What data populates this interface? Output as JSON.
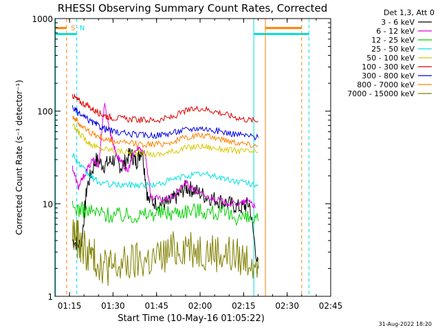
{
  "chart_data": {
    "type": "line",
    "title": "RHESSI Observing Summary Count Rates, Corrected",
    "xlabel": "Start Time (10-May-16 01:05:22)",
    "ylabel": "Corrected Count Rate (s⁻¹ detector⁻¹)",
    "y_scale": "log",
    "ylim": [
      1,
      1000
    ],
    "xlim_minutes": [
      5,
      100
    ],
    "x_ticks": [
      {
        "label": "01:15",
        "minutes": 10
      },
      {
        "label": "01:30",
        "minutes": 25
      },
      {
        "label": "01:45",
        "minutes": 40
      },
      {
        "label": "02:00",
        "minutes": 55
      },
      {
        "label": "02:15",
        "minutes": 70
      },
      {
        "label": "02:30",
        "minutes": 85
      },
      {
        "label": "02:45",
        "minutes": 100
      }
    ],
    "y_ticks": [
      {
        "label": "1",
        "value": 1
      },
      {
        "label": "10",
        "value": 10
      },
      {
        "label": "100",
        "value": 100
      },
      {
        "label": "1000",
        "value": 1000
      }
    ],
    "legend_title": "Det 1,3, Att 0",
    "legend_position": "top-right outside",
    "series": [
      {
        "name": "3 - 6 keV",
        "color": "#000000",
        "points": [
          [
            11,
            4
          ],
          [
            14,
            3.5
          ],
          [
            16,
            15
          ],
          [
            19,
            30
          ],
          [
            22,
            26
          ],
          [
            25,
            30
          ],
          [
            28,
            25
          ],
          [
            31,
            35
          ],
          [
            33,
            28
          ],
          [
            35,
            40
          ],
          [
            37,
            11
          ],
          [
            41,
            10
          ],
          [
            44,
            10
          ],
          [
            47,
            12
          ],
          [
            50,
            15
          ],
          [
            53,
            14
          ],
          [
            57,
            12
          ],
          [
            61,
            11
          ],
          [
            65,
            10
          ],
          [
            69,
            9
          ],
          [
            72,
            10
          ],
          [
            75,
            2
          ]
        ]
      },
      {
        "name": "6 - 12 keV",
        "color": "#e000e0",
        "points": [
          [
            11,
            25
          ],
          [
            13,
            15
          ],
          [
            15,
            20
          ],
          [
            18,
            30
          ],
          [
            20,
            25
          ],
          [
            22,
            120
          ],
          [
            24,
            60
          ],
          [
            26,
            35
          ],
          [
            28,
            28
          ],
          [
            30,
            22
          ],
          [
            32,
            35
          ],
          [
            34,
            40
          ],
          [
            36,
            36
          ],
          [
            38,
            12
          ],
          [
            42,
            11
          ],
          [
            46,
            12
          ],
          [
            50,
            17
          ],
          [
            53,
            14
          ],
          [
            57,
            12
          ],
          [
            61,
            11
          ],
          [
            65,
            10
          ],
          [
            69,
            10
          ],
          [
            72,
            11
          ],
          [
            74,
            9
          ]
        ]
      },
      {
        "name": "12 - 25 keV",
        "color": "#00d000",
        "points": [
          [
            11,
            9
          ],
          [
            15,
            8.5
          ],
          [
            20,
            8
          ],
          [
            25,
            7.5
          ],
          [
            30,
            7.5
          ],
          [
            35,
            7.5
          ],
          [
            40,
            8
          ],
          [
            45,
            8
          ],
          [
            50,
            8.5
          ],
          [
            55,
            8.5
          ],
          [
            60,
            8
          ],
          [
            65,
            7.5
          ],
          [
            70,
            7
          ],
          [
            75,
            6.5
          ]
        ]
      },
      {
        "name": "25 - 50 keV",
        "color": "#00e0e0",
        "points": [
          [
            11,
            35
          ],
          [
            14,
            25
          ],
          [
            17,
            20
          ],
          [
            20,
            17
          ],
          [
            25,
            16
          ],
          [
            30,
            16
          ],
          [
            35,
            16
          ],
          [
            40,
            16
          ],
          [
            45,
            18
          ],
          [
            50,
            20
          ],
          [
            55,
            21
          ],
          [
            60,
            20
          ],
          [
            65,
            18
          ],
          [
            70,
            17
          ],
          [
            75,
            16
          ]
        ]
      },
      {
        "name": "50 - 100 keV",
        "color": "#d8c800",
        "points": [
          [
            11,
            70
          ],
          [
            14,
            55
          ],
          [
            17,
            45
          ],
          [
            20,
            40
          ],
          [
            25,
            38
          ],
          [
            30,
            36
          ],
          [
            35,
            35
          ],
          [
            40,
            34
          ],
          [
            45,
            36
          ],
          [
            50,
            40
          ],
          [
            55,
            42
          ],
          [
            60,
            40
          ],
          [
            65,
            38
          ],
          [
            70,
            37
          ],
          [
            75,
            36
          ]
        ]
      },
      {
        "name": "100 - 300 keV",
        "color": "#e00000",
        "points": [
          [
            11,
            150
          ],
          [
            13,
            130
          ],
          [
            16,
            115
          ],
          [
            19,
            100
          ],
          [
            22,
            90
          ],
          [
            25,
            85
          ],
          [
            30,
            82
          ],
          [
            35,
            80
          ],
          [
            40,
            80
          ],
          [
            45,
            85
          ],
          [
            50,
            100
          ],
          [
            55,
            108
          ],
          [
            60,
            100
          ],
          [
            65,
            90
          ],
          [
            70,
            82
          ],
          [
            75,
            78
          ]
        ]
      },
      {
        "name": "300 - 800 keV",
        "color": "#0000e0",
        "points": [
          [
            11,
            110
          ],
          [
            13,
            95
          ],
          [
            16,
            82
          ],
          [
            19,
            72
          ],
          [
            22,
            65
          ],
          [
            25,
            60
          ],
          [
            30,
            57
          ],
          [
            35,
            55
          ],
          [
            40,
            55
          ],
          [
            45,
            58
          ],
          [
            50,
            63
          ],
          [
            55,
            66
          ],
          [
            60,
            62
          ],
          [
            65,
            58
          ],
          [
            70,
            55
          ],
          [
            75,
            52
          ]
        ]
      },
      {
        "name": "800 - 7000 keV",
        "color": "#ff8000",
        "points": [
          [
            11,
            90
          ],
          [
            13,
            75
          ],
          [
            16,
            62
          ],
          [
            19,
            55
          ],
          [
            22,
            50
          ],
          [
            25,
            47
          ],
          [
            30,
            45
          ],
          [
            35,
            44
          ],
          [
            40,
            44
          ],
          [
            45,
            46
          ],
          [
            50,
            52
          ],
          [
            55,
            55
          ],
          [
            60,
            52
          ],
          [
            65,
            48
          ],
          [
            70,
            45
          ],
          [
            75,
            42
          ]
        ]
      },
      {
        "name": "7000 - 15000 keV",
        "color": "#808000",
        "points": [
          [
            11,
            5
          ],
          [
            13,
            4
          ],
          [
            16,
            3
          ],
          [
            19,
            2.5
          ],
          [
            22,
            2.2
          ],
          [
            25,
            2
          ],
          [
            30,
            2.2
          ],
          [
            35,
            2.4
          ],
          [
            40,
            2.5
          ],
          [
            45,
            3
          ],
          [
            50,
            3.6
          ],
          [
            55,
            3.2
          ],
          [
            60,
            3
          ],
          [
            65,
            2.8
          ],
          [
            70,
            2.5
          ],
          [
            75,
            2.6
          ]
        ]
      }
    ],
    "markers": [
      {
        "label": "S",
        "minutes": 10,
        "color": "#ff8000"
      },
      {
        "label": "N",
        "minutes": 13,
        "color": "#00e0e0"
      }
    ],
    "vertical_lines": [
      {
        "minutes": 9,
        "color": "#ff8000",
        "style": "dashed"
      },
      {
        "minutes": 12.5,
        "color": "#00e0e0",
        "style": "dashed"
      },
      {
        "minutes": 5.2,
        "color": "#00e0e0",
        "style": "solid"
      },
      {
        "minutes": 73.5,
        "color": "#00e0e0",
        "style": "solid"
      },
      {
        "minutes": 77.5,
        "color": "#ff8000",
        "style": "solid"
      },
      {
        "minutes": 90,
        "color": "#ff8000",
        "style": "dashed"
      },
      {
        "minutes": 92.5,
        "color": "#00e0e0",
        "style": "dashed"
      }
    ],
    "flag_segments": [
      {
        "from": 5,
        "to": 9,
        "value": 790,
        "color": "#ff8000"
      },
      {
        "from": 5,
        "to": 12.5,
        "value": 680,
        "color": "#00e0e0"
      },
      {
        "from": 77.5,
        "to": 90,
        "value": 790,
        "color": "#ff8000"
      },
      {
        "from": 73.5,
        "to": 92.5,
        "value": 680,
        "color": "#00e0e0"
      }
    ]
  },
  "footer": {
    "timestamp": "31-Aug-2022 18:20"
  }
}
